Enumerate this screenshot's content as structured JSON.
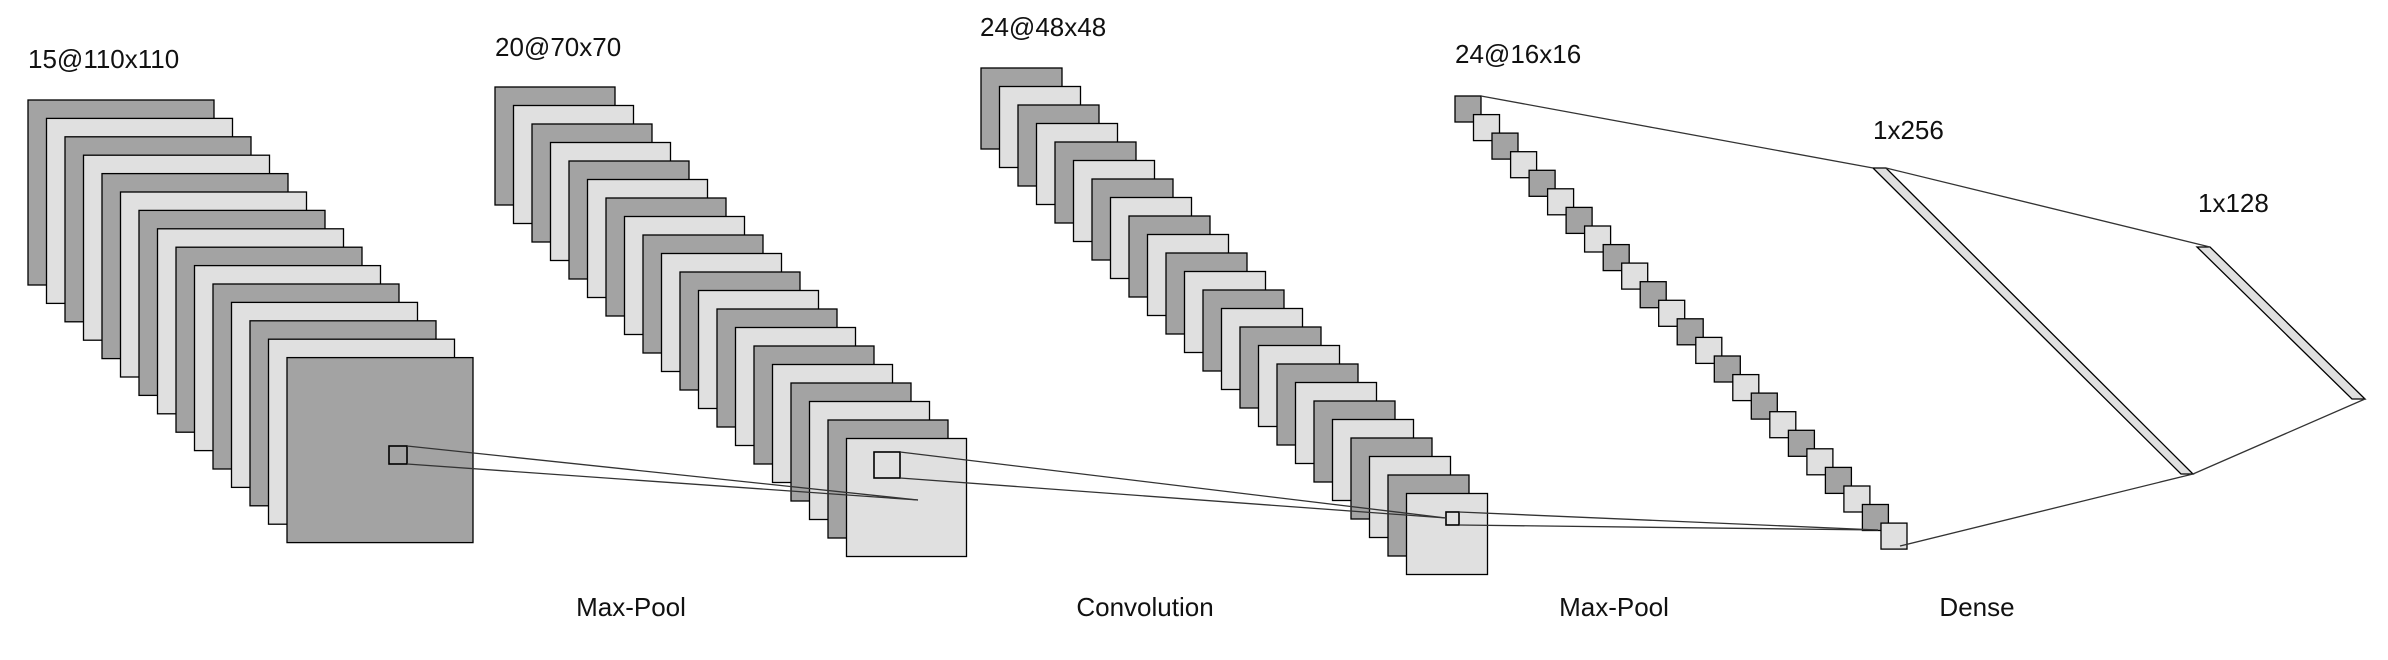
{
  "colors": {
    "dark": "#a3a3a3",
    "light": "#e0e0e0",
    "stroke": "#000000",
    "line": "#333333"
  },
  "layers": [
    {
      "label": "15@110x110",
      "maps": 15
    },
    {
      "label": "20@70x70",
      "maps": 20
    },
    {
      "label": "24@48x48",
      "maps": 24
    },
    {
      "label": "24@16x16",
      "maps": 24
    },
    {
      "label": "1x256"
    },
    {
      "label": "1x128"
    }
  ],
  "operations": [
    "Max-Pool",
    "Convolution",
    "Max-Pool",
    "Dense"
  ]
}
